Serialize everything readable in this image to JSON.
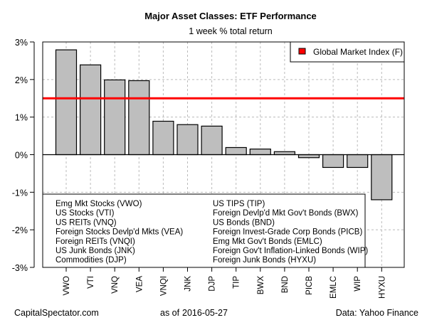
{
  "chart_data": {
    "type": "bar",
    "title": "Major Asset Classes: ETF Performance",
    "subtitle": "1 week % total return",
    "xlabel": "",
    "ylabel": "",
    "ylim": [
      -3,
      3
    ],
    "yticks": [
      3,
      2,
      1,
      0,
      -1,
      -2,
      -3
    ],
    "ytick_labels": [
      "3%",
      "2%",
      "1%",
      "0%",
      "-1%",
      "-2%",
      "-3%"
    ],
    "grid": true,
    "categories": [
      "VWO",
      "VTI",
      "VNQ",
      "VEA",
      "VNQI",
      "JNK",
      "DJP",
      "TIP",
      "BWX",
      "BND",
      "PICB",
      "EMLC",
      "WIP",
      "HYXU"
    ],
    "values": [
      2.79,
      2.39,
      1.99,
      1.97,
      0.89,
      0.8,
      0.76,
      0.19,
      0.15,
      0.08,
      -0.08,
      -0.34,
      -0.34,
      -1.2
    ],
    "bar_color": "#bebebe",
    "reference_line": {
      "label": "Global Market Index (F)",
      "value": 1.5,
      "color": "#ff0000"
    },
    "legend_position": "top-right",
    "category_key": {
      "left": [
        "Emg Mkt Stocks (VWO)",
        "US Stocks (VTI)",
        "US REITs (VNQ)",
        "Foreign Stocks Devlp'd Mkts (VEA)",
        "Foreign REITs (VNQI)",
        "US Junk Bonds (JNK)",
        "Commodities (DJP)"
      ],
      "right": [
        "US TIPS (TIP)",
        "Foreign Devlp'd Mkt Gov't Bonds (BWX)",
        "US Bonds (BND)",
        "Foreign Invest-Grade Corp Bonds (PICB)",
        "Emg Mkt Gov't Bonds (EMLC)",
        "Foreign Gov't Inflation-Linked Bonds (WIP)",
        "Foreign Junk Bonds (HYXU)"
      ],
      "position": "bottom-left"
    }
  },
  "footer": {
    "source_site": "CapitalSpectator.com",
    "as_of_label": "as of",
    "as_of_date": "2016-05-27",
    "data_source": "Data: Yahoo Finance"
  }
}
